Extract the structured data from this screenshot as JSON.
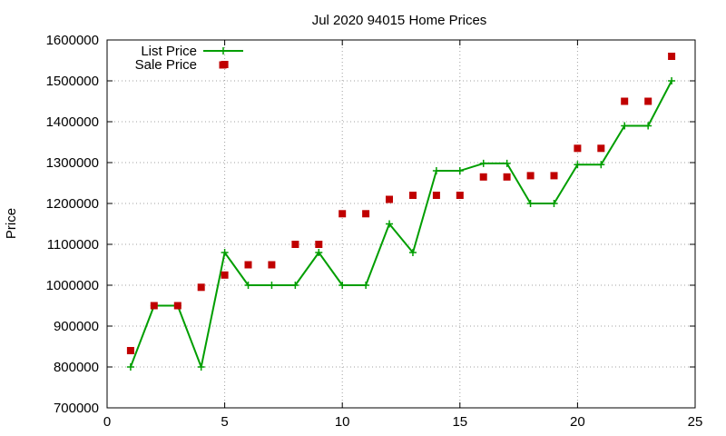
{
  "chart_data": {
    "type": "line",
    "title": "Jul 2020 94015 Home Prices",
    "xlabel": "",
    "ylabel": "Price",
    "xlim": [
      0,
      25
    ],
    "ylim": [
      700000,
      1600000
    ],
    "xticks": [
      0,
      5,
      10,
      15,
      20,
      25
    ],
    "yticks": [
      700000,
      800000,
      900000,
      1000000,
      1100000,
      1200000,
      1300000,
      1400000,
      1500000,
      1600000
    ],
    "grid": true,
    "legend_position": "top-left",
    "series": [
      {
        "name": "List Price",
        "style": "line-with-plus-markers",
        "color": "#009e00",
        "x": [
          1,
          2,
          3,
          4,
          5,
          6,
          7,
          8,
          9,
          10,
          11,
          12,
          13,
          14,
          15,
          16,
          17,
          18,
          19,
          20,
          21,
          22,
          23,
          24
        ],
        "values": [
          800000,
          950000,
          950000,
          800000,
          1080000,
          1000000,
          1000000,
          1000000,
          1080000,
          1000000,
          1000000,
          1150000,
          1080000,
          1280000,
          1280000,
          1298000,
          1298000,
          1200000,
          1200000,
          1295000,
          1295000,
          1390000,
          1390000,
          1500000
        ]
      },
      {
        "name": "Sale Price",
        "style": "square-markers",
        "color": "#c00000",
        "x": [
          1,
          2,
          3,
          4,
          5,
          5,
          6,
          7,
          8,
          9,
          10,
          11,
          12,
          13,
          14,
          15,
          16,
          17,
          18,
          19,
          20,
          21,
          22,
          23,
          24
        ],
        "values": [
          840000,
          950000,
          950000,
          995000,
          1025000,
          1540000,
          1050000,
          1050000,
          1100000,
          1100000,
          1175000,
          1175000,
          1210000,
          1220000,
          1220000,
          1220000,
          1265000,
          1265000,
          1268000,
          1268000,
          1335000,
          1335000,
          1450000,
          1450000,
          1560000
        ]
      }
    ]
  }
}
